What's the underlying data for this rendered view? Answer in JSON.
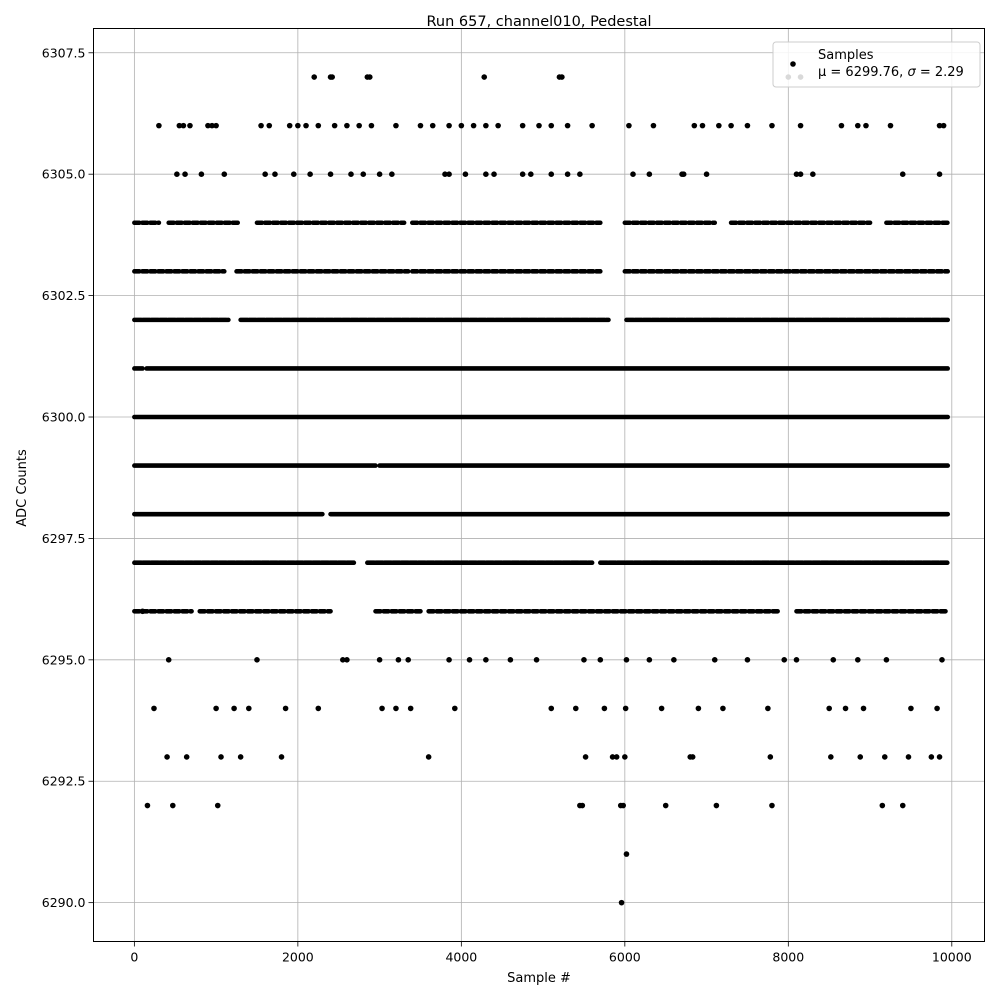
{
  "chart_data": {
    "type": "scatter",
    "title": "Run 657, channel010, Pedestal",
    "xlabel": "Sample #",
    "ylabel": "ADC Counts",
    "xlim": [
      -500,
      10400
    ],
    "ylim": [
      6289.2,
      6308.0
    ],
    "x_ticks": [
      0,
      2000,
      4000,
      6000,
      8000,
      10000
    ],
    "x_tick_labels": [
      "0",
      "2000",
      "4000",
      "6000",
      "8000",
      "10000"
    ],
    "y_ticks": [
      6290.0,
      6292.5,
      6295.0,
      6297.5,
      6300.0,
      6302.5,
      6305.0,
      6307.5
    ],
    "y_tick_labels": [
      "6290.0",
      "6292.5",
      "6295.0",
      "6297.5",
      "6300.0",
      "6302.5",
      "6305.0",
      "6307.5"
    ],
    "grid": true,
    "legend": {
      "placement": "top-right",
      "label": "Samples",
      "stats_prefix": "μ = 6299.76, ",
      "stats_sigma_symbol": "σ",
      "stats_suffix": " = 2.29"
    },
    "marker_color": "#000000",
    "series": [
      {
        "name": "Samples",
        "points": [
          [
            2200,
            6307
          ],
          [
            2400,
            6307
          ],
          [
            2420,
            6307
          ],
          [
            2850,
            6307
          ],
          [
            2880,
            6307
          ],
          [
            4280,
            6307
          ],
          [
            5200,
            6307
          ],
          [
            5230,
            6307
          ],
          [
            8000,
            6307
          ],
          [
            8150,
            6307
          ],
          [
            6020,
            6291
          ],
          [
            5960,
            6290
          ],
          [
            300,
            6306
          ],
          [
            550,
            6306
          ],
          [
            600,
            6306
          ],
          [
            680,
            6306
          ],
          [
            900,
            6306
          ],
          [
            950,
            6306
          ],
          [
            1000,
            6306
          ],
          [
            1550,
            6306
          ],
          [
            1650,
            6306
          ],
          [
            1900,
            6306
          ],
          [
            2000,
            6306
          ],
          [
            2100,
            6306
          ],
          [
            2250,
            6306
          ],
          [
            2450,
            6306
          ],
          [
            2600,
            6306
          ],
          [
            2750,
            6306
          ],
          [
            2900,
            6306
          ],
          [
            3200,
            6306
          ],
          [
            3500,
            6306
          ],
          [
            3650,
            6306
          ],
          [
            3850,
            6306
          ],
          [
            4000,
            6306
          ],
          [
            4150,
            6306
          ],
          [
            4300,
            6306
          ],
          [
            4450,
            6306
          ],
          [
            4750,
            6306
          ],
          [
            4950,
            6306
          ],
          [
            5100,
            6306
          ],
          [
            5300,
            6306
          ],
          [
            5600,
            6306
          ],
          [
            6050,
            6306
          ],
          [
            6350,
            6306
          ],
          [
            6850,
            6306
          ],
          [
            6950,
            6306
          ],
          [
            7150,
            6306
          ],
          [
            7300,
            6306
          ],
          [
            7500,
            6306
          ],
          [
            7800,
            6306
          ],
          [
            8150,
            6306
          ],
          [
            8650,
            6306
          ],
          [
            8850,
            6306
          ],
          [
            8950,
            6306
          ],
          [
            9250,
            6306
          ],
          [
            9850,
            6306
          ],
          [
            9900,
            6306
          ],
          [
            520,
            6305
          ],
          [
            620,
            6305
          ],
          [
            820,
            6305
          ],
          [
            1100,
            6305
          ],
          [
            1600,
            6305
          ],
          [
            1720,
            6305
          ],
          [
            1950,
            6305
          ],
          [
            2150,
            6305
          ],
          [
            2400,
            6305
          ],
          [
            2650,
            6305
          ],
          [
            2800,
            6305
          ],
          [
            3000,
            6305
          ],
          [
            3150,
            6305
          ],
          [
            3800,
            6305
          ],
          [
            3850,
            6305
          ],
          [
            4050,
            6305
          ],
          [
            4300,
            6305
          ],
          [
            4400,
            6305
          ],
          [
            4750,
            6305
          ],
          [
            4850,
            6305
          ],
          [
            5100,
            6305
          ],
          [
            5300,
            6305
          ],
          [
            5450,
            6305
          ],
          [
            6100,
            6305
          ],
          [
            6300,
            6305
          ],
          [
            6700,
            6305
          ],
          [
            6720,
            6305
          ],
          [
            7000,
            6305
          ],
          [
            8100,
            6305
          ],
          [
            8150,
            6305
          ],
          [
            8300,
            6305
          ],
          [
            9400,
            6305
          ],
          [
            9850,
            6305
          ],
          [
            100,
            6296
          ],
          [
            160,
            6292
          ],
          [
            240,
            6294
          ],
          [
            400,
            6293
          ],
          [
            420,
            6295
          ],
          [
            470,
            6292
          ],
          [
            640,
            6293
          ],
          [
            1000,
            6294
          ],
          [
            1020,
            6292
          ],
          [
            1060,
            6293
          ],
          [
            1220,
            6294
          ],
          [
            1300,
            6293
          ],
          [
            1400,
            6294
          ],
          [
            1500,
            6295
          ],
          [
            1800,
            6293
          ],
          [
            1850,
            6294
          ],
          [
            2250,
            6294
          ],
          [
            2550,
            6295
          ],
          [
            2600,
            6295
          ],
          [
            3000,
            6295
          ],
          [
            3030,
            6294
          ],
          [
            3200,
            6294
          ],
          [
            3230,
            6295
          ],
          [
            3350,
            6295
          ],
          [
            3380,
            6294
          ],
          [
            3600,
            6293
          ],
          [
            3850,
            6295
          ],
          [
            3920,
            6294
          ],
          [
            4100,
            6295
          ],
          [
            4300,
            6295
          ],
          [
            4600,
            6295
          ],
          [
            4920,
            6295
          ],
          [
            5100,
            6294
          ],
          [
            5400,
            6294
          ],
          [
            5450,
            6292
          ],
          [
            5480,
            6292
          ],
          [
            5500,
            6295
          ],
          [
            5520,
            6293
          ],
          [
            5700,
            6295
          ],
          [
            5750,
            6294
          ],
          [
            5850,
            6293
          ],
          [
            5900,
            6293
          ],
          [
            5950,
            6292
          ],
          [
            5980,
            6292
          ],
          [
            6000,
            6293
          ],
          [
            6010,
            6294
          ],
          [
            6020,
            6295
          ],
          [
            6300,
            6295
          ],
          [
            6450,
            6294
          ],
          [
            6500,
            6292
          ],
          [
            6600,
            6295
          ],
          [
            6800,
            6293
          ],
          [
            6830,
            6293
          ],
          [
            6900,
            6294
          ],
          [
            7100,
            6295
          ],
          [
            7120,
            6292
          ],
          [
            7200,
            6294
          ],
          [
            7500,
            6295
          ],
          [
            7750,
            6294
          ],
          [
            7780,
            6293
          ],
          [
            7800,
            6292
          ],
          [
            7950,
            6295
          ],
          [
            8100,
            6295
          ],
          [
            8500,
            6294
          ],
          [
            8520,
            6293
          ],
          [
            8550,
            6295
          ],
          [
            8700,
            6294
          ],
          [
            8850,
            6295
          ],
          [
            8880,
            6293
          ],
          [
            8920,
            6294
          ],
          [
            9150,
            6292
          ],
          [
            9180,
            6293
          ],
          [
            9200,
            6295
          ],
          [
            9400,
            6292
          ],
          [
            9470,
            6293
          ],
          [
            9500,
            6294
          ],
          [
            9750,
            6293
          ],
          [
            9820,
            6294
          ],
          [
            9850,
            6293
          ],
          [
            9880,
            6295
          ]
        ]
      }
    ]
  }
}
